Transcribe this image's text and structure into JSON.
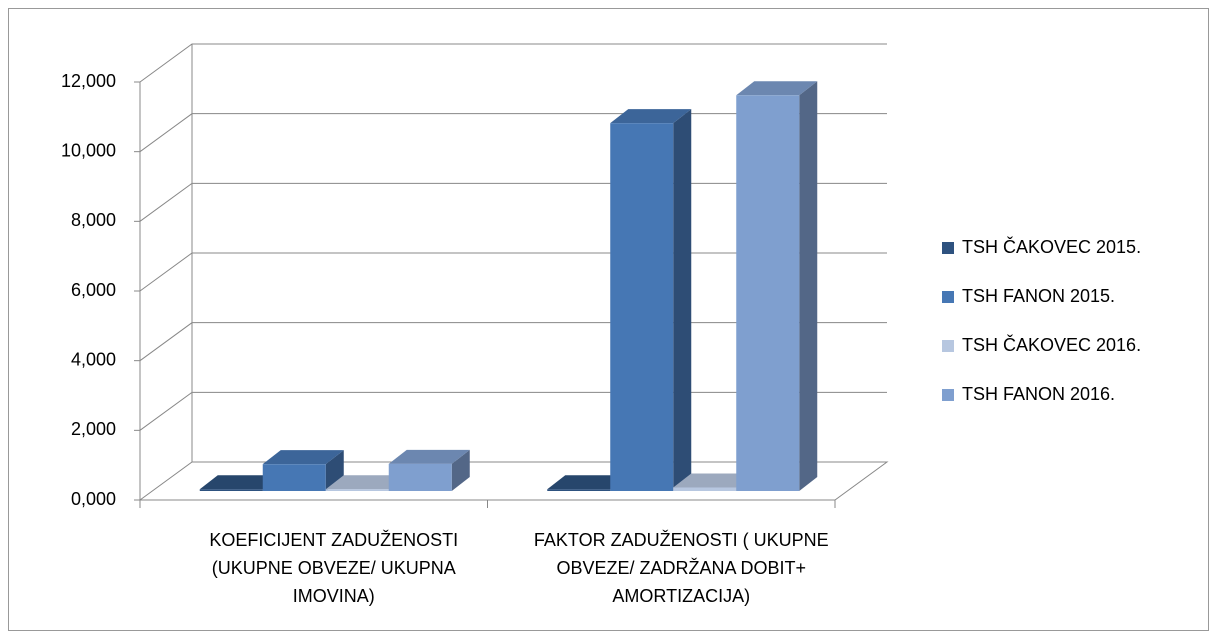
{
  "chart_data": {
    "type": "bar3d",
    "categories": [
      "KOEFICIJENT ZADUŽENOSTI (UKUPNE OBVEZE/ UKUPNA IMOVINA)",
      "FAKTOR ZADUŽENOSTI ( UKUPNE OBVEZE/ ZADRŽANA DOBIT+ AMORTIZACIJA)"
    ],
    "series": [
      {
        "name": "TSH ČAKOVEC 2015.",
        "color": "#2e527f",
        "values": [
          0.05,
          0.05
        ]
      },
      {
        "name": "TSH FANON 2015.",
        "color": "#4677b4",
        "values": [
          0.77,
          10.56
        ]
      },
      {
        "name": "TSH ČAKOVEC 2016.",
        "color": "#b7c7e0",
        "values": [
          0.05,
          0.1
        ]
      },
      {
        "name": "TSH FANON 2016.",
        "color": "#7f9fcf",
        "values": [
          0.78,
          11.36
        ]
      }
    ],
    "ylim": [
      0,
      12
    ],
    "yticks": [
      {
        "value": 0,
        "label": "0,000"
      },
      {
        "value": 2,
        "label": "2,000"
      },
      {
        "value": 4,
        "label": "4,000"
      },
      {
        "value": 6,
        "label": "6,000"
      },
      {
        "value": 8,
        "label": "8,000"
      },
      {
        "value": 10,
        "label": "10,000"
      },
      {
        "value": 12,
        "label": "12,000"
      }
    ],
    "grid": true,
    "legend": "right"
  }
}
